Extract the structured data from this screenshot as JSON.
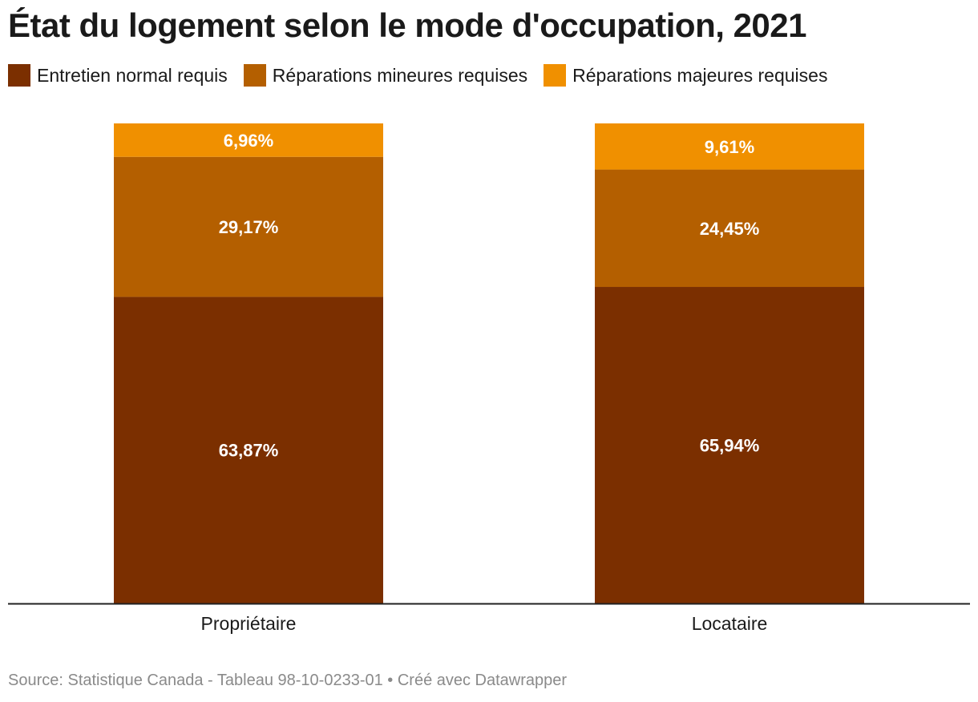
{
  "title": "État du logement selon le mode d'occupation, 2021",
  "legend": [
    {
      "label": "Entretien normal requis",
      "color": "#7b2f00"
    },
    {
      "label": "Réparations mineures requises",
      "color": "#b45f00"
    },
    {
      "label": "Réparations majeures requises",
      "color": "#f09000"
    }
  ],
  "chart_data": {
    "type": "bar",
    "stacked": true,
    "normalized": true,
    "categories": [
      "Propriétaire",
      "Locataire"
    ],
    "series": [
      {
        "name": "Entretien normal requis",
        "values": [
          63.87,
          65.94
        ],
        "labels": [
          "63,87%",
          "65,94%"
        ],
        "color": "#7b2f00"
      },
      {
        "name": "Réparations mineures requises",
        "values": [
          29.17,
          24.45
        ],
        "labels": [
          "29,17%",
          "24,45%"
        ],
        "color": "#b45f00"
      },
      {
        "name": "Réparations majeures requises",
        "values": [
          6.96,
          9.61
        ],
        "labels": [
          "6,96%",
          "9,61%"
        ],
        "color": "#f09000"
      }
    ],
    "ylim": [
      0,
      100
    ],
    "grid": false,
    "legend_position": "top-left"
  },
  "footer": "Source: Statistique Canada - Tableau 98-10-0233-01 • Créé avec Datawrapper"
}
